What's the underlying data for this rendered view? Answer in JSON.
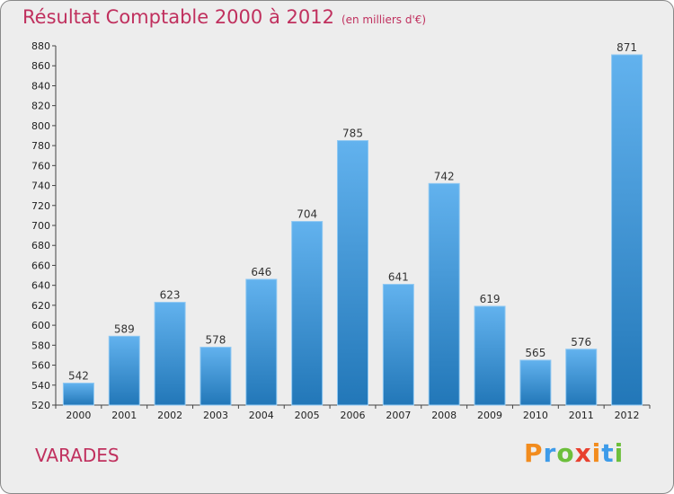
{
  "header": {
    "title": "Résultat Comptable 2000 à 2012",
    "subtitle": "(en milliers d'€)"
  },
  "footer": {
    "place": "VARADES"
  },
  "logo": {
    "letters": [
      "P",
      "r",
      "o",
      "x",
      "i",
      "t",
      "i"
    ]
  },
  "colors": {
    "bar_top": "#62b2ee",
    "bar_bottom": "#2277b8",
    "title": "#c0305e"
  },
  "chart_data": {
    "type": "bar",
    "title": "Résultat Comptable 2000 à 2012",
    "xlabel": "",
    "ylabel": "",
    "categories": [
      "2000",
      "2001",
      "2002",
      "2003",
      "2004",
      "2005",
      "2006",
      "2007",
      "2008",
      "2009",
      "2010",
      "2011",
      "2012"
    ],
    "values": [
      542,
      589,
      623,
      578,
      646,
      704,
      785,
      641,
      742,
      619,
      565,
      576,
      871
    ],
    "ylim": [
      520,
      880
    ],
    "yticks": [
      520,
      540,
      560,
      580,
      600,
      620,
      640,
      660,
      680,
      700,
      720,
      740,
      760,
      780,
      800,
      820,
      840,
      860,
      880
    ],
    "grid": false
  }
}
